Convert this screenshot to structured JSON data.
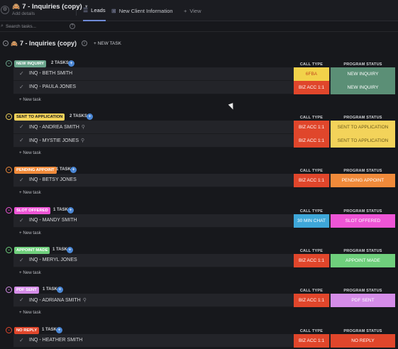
{
  "header": {
    "app_icon": "gear-icon",
    "emoji": "🙈",
    "title": "7 - Inquiries (copy)",
    "subtitle": "Add details",
    "tabs": [
      {
        "label": "Leads",
        "icon": "list-icon"
      },
      {
        "label": "New Client Information",
        "icon": "table-icon"
      },
      {
        "label": "View",
        "icon": "plus-icon"
      }
    ]
  },
  "search": {
    "placeholder": "Search tasks..."
  },
  "list": {
    "emoji": "🙈",
    "title": "7 - Inquiries (copy)",
    "new_task_label": "+ NEW TASK"
  },
  "columns": {
    "call_type": "CALL TYPE",
    "program_status": "PROGRAM STATUS"
  },
  "new_task_label": "+ New task",
  "colors": {
    "call_red": "#e0462b",
    "call_yellow": "#f2d24a",
    "call_blue": "#3ea7d9",
    "status_green": "#5b8f76",
    "status_yellow": "#f3d35a",
    "status_orange": "#f08a3a",
    "status_pink": "#ee55d6",
    "status_mint": "#6fcf7c",
    "status_lilac": "#d58de8",
    "status_red": "#e0462b"
  },
  "groups": [
    {
      "status": "NEW INQUIRY",
      "count": "2 TASKS",
      "pill_color": "#6aa58c",
      "pill_text": "light",
      "tasks": [
        {
          "name": "INQ - BETH SMITH",
          "attach": false,
          "call": "6FBA",
          "call_color": "#f2d24a",
          "call_text": "#c34a1e",
          "status": "NEW INQUIRY",
          "status_color": "#5b8f76",
          "status_text": "#ffffff"
        },
        {
          "name": "INQ - PAULA JONES",
          "attach": false,
          "call": "BIZ ACC 1:1",
          "call_color": "#e0462b",
          "call_text": "#ffffff",
          "status": "NEW INQUIRY",
          "status_color": "#5b8f76",
          "status_text": "#ffffff"
        }
      ]
    },
    {
      "status": "SENT TO APPLICATION",
      "count": "2 TASKS",
      "pill_color": "#f3d35a",
      "pill_text": "dark",
      "tasks": [
        {
          "name": "INQ - ANDREA SMITH",
          "attach": true,
          "call": "BIZ ACC 1:1",
          "call_color": "#e0462b",
          "call_text": "#ffffff",
          "status": "SENT TO APPLICATION",
          "status_color": "#f3d35a",
          "status_text": "#6b5a1a"
        },
        {
          "name": "INQ - MYSTIE JONES",
          "attach": true,
          "call": "BIZ ACC 1:1",
          "call_color": "#e0462b",
          "call_text": "#ffffff",
          "status": "SENT TO APPLICATION",
          "status_color": "#f3d35a",
          "status_text": "#6b5a1a"
        }
      ]
    },
    {
      "status": "PENDING APPOINT",
      "count": "1 TASK",
      "pill_color": "#f08a3a",
      "pill_text": "light",
      "tasks": [
        {
          "name": "INQ - BETSY JONES",
          "attach": false,
          "call": "BIZ ACC 1:1",
          "call_color": "#e0462b",
          "call_text": "#ffffff",
          "status": "PENDING APPOINT",
          "status_color": "#f08a3a",
          "status_text": "#ffffff"
        }
      ]
    },
    {
      "status": "SLOT OFFERED",
      "count": "1 TASK",
      "pill_color": "#ee55d6",
      "pill_text": "light",
      "tasks": [
        {
          "name": "INQ - MANDY SMITH",
          "attach": false,
          "call": "30 MIN CHAT",
          "call_color": "#3ea7d9",
          "call_text": "#ffffff",
          "status": "SLOT OFFERED",
          "status_color": "#ee55d6",
          "status_text": "#ffffff"
        }
      ]
    },
    {
      "status": "APPOINT MADE",
      "count": "1 TASK",
      "pill_color": "#6fcf7c",
      "pill_text": "light",
      "tasks": [
        {
          "name": "INQ - MERYL JONES",
          "attach": false,
          "call": "BIZ ACC 1:1",
          "call_color": "#e0462b",
          "call_text": "#ffffff",
          "status": "APPOINT MADE",
          "status_color": "#6fcf7c",
          "status_text": "#ffffff"
        }
      ]
    },
    {
      "status": "PDF SENT",
      "count": "1 TASK",
      "pill_color": "#d58de8",
      "pill_text": "light",
      "tasks": [
        {
          "name": "INQ - ADRIANA SMITH",
          "attach": true,
          "call": "BIZ ACC 1:1",
          "call_color": "#e0462b",
          "call_text": "#ffffff",
          "status": "PDF SENT",
          "status_color": "#d58de8",
          "status_text": "#ffffff"
        }
      ]
    },
    {
      "status": "NO REPLY",
      "count": "1 TASK",
      "pill_color": "#e0462b",
      "pill_text": "light",
      "tasks": [
        {
          "name": "INQ - HEATHER SMITH",
          "attach": false,
          "call": "BIZ ACC 1:1",
          "call_color": "#e0462b",
          "call_text": "#ffffff",
          "status": "NO REPLY",
          "status_color": "#e0462b",
          "status_text": "#ffffff"
        }
      ]
    }
  ]
}
